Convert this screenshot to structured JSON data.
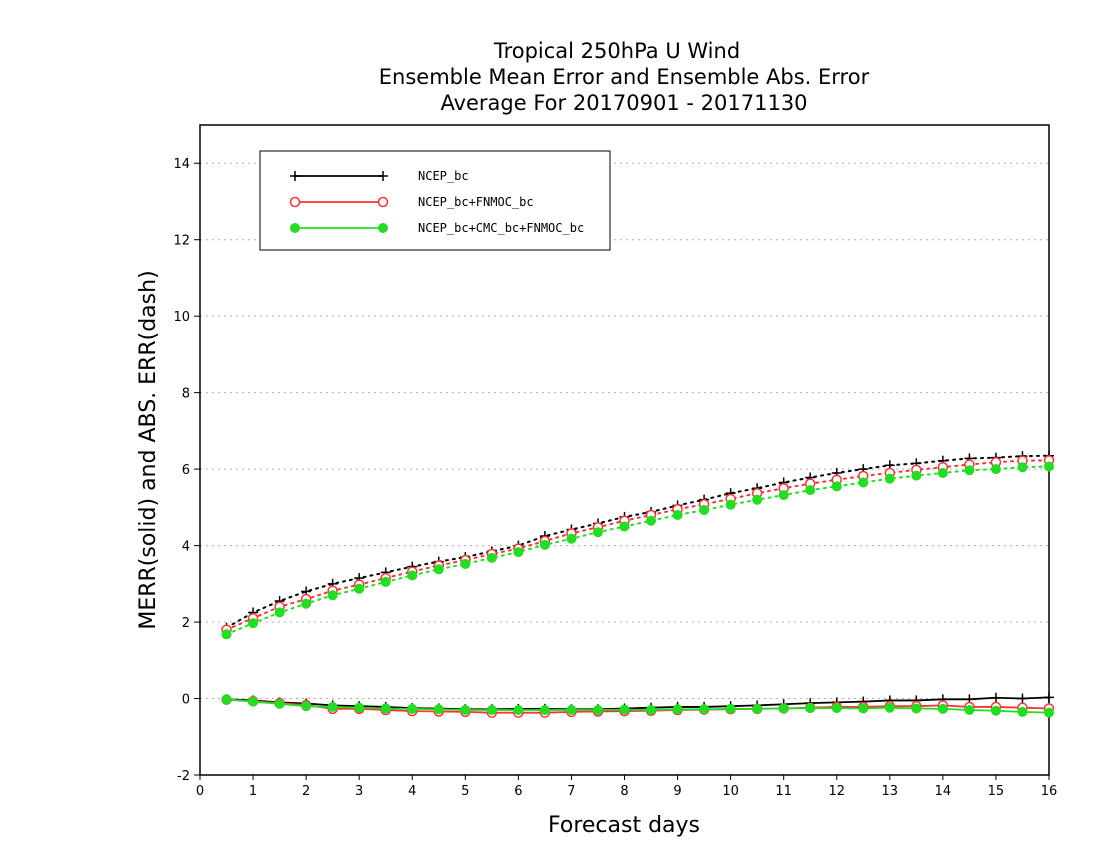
{
  "chart_data": {
    "type": "line",
    "title": [
      "Tropical 250hPa U Wind",
      "Ensemble Mean Error and Ensemble Abs. Error",
      "Average For 20170901 - 20171130"
    ],
    "xlabel": "Forecast days",
    "ylabel": "MERR(solid) and ABS. ERR(dash)",
    "xlim": [
      0,
      16
    ],
    "ylim": [
      -2,
      15
    ],
    "xticks": [
      "0",
      "1",
      "2",
      "3",
      "4",
      "5",
      "6",
      "7",
      "8",
      "9",
      "10",
      "11",
      "12",
      "13",
      "14",
      "15",
      "16"
    ],
    "yticks": [
      "-2",
      "0",
      "2",
      "4",
      "6",
      "8",
      "10",
      "12",
      "14"
    ],
    "grid": "horizontal dotted",
    "legend_position": "top-left",
    "x": [
      0.5,
      1,
      1.5,
      2,
      2.5,
      3,
      3.5,
      4,
      4.5,
      5,
      5.5,
      6,
      6.5,
      7,
      7.5,
      8,
      8.5,
      9,
      9.5,
      10,
      10.5,
      11,
      11.5,
      12,
      12.5,
      13,
      13.5,
      14,
      14.5,
      15,
      15.5,
      16
    ],
    "series": [
      {
        "name": "NCEP_bc",
        "color": "#000000",
        "marker": "plus",
        "abs_err": [
          1.85,
          2.25,
          2.55,
          2.8,
          3.0,
          3.15,
          3.3,
          3.45,
          3.58,
          3.7,
          3.85,
          4.0,
          4.25,
          4.42,
          4.58,
          4.75,
          4.88,
          5.05,
          5.2,
          5.37,
          5.5,
          5.65,
          5.78,
          5.9,
          6.0,
          6.1,
          6.15,
          6.22,
          6.28,
          6.3,
          6.34,
          6.35
        ],
        "mean_err": [
          -0.02,
          -0.05,
          -0.1,
          -0.13,
          -0.18,
          -0.2,
          -0.22,
          -0.25,
          -0.26,
          -0.28,
          -0.28,
          -0.27,
          -0.27,
          -0.28,
          -0.28,
          -0.26,
          -0.24,
          -0.22,
          -0.22,
          -0.2,
          -0.18,
          -0.15,
          -0.12,
          -0.1,
          -0.08,
          -0.05,
          -0.05,
          -0.02,
          -0.02,
          0.02,
          0.0,
          0.03
        ]
      },
      {
        "name": "NCEP_bc+FNMOC_bc",
        "color": "#ff3333",
        "marker": "open-circle",
        "abs_err": [
          1.8,
          2.1,
          2.4,
          2.6,
          2.82,
          2.98,
          3.15,
          3.32,
          3.48,
          3.62,
          3.78,
          3.92,
          4.12,
          4.32,
          4.48,
          4.65,
          4.8,
          4.95,
          5.08,
          5.22,
          5.37,
          5.5,
          5.62,
          5.72,
          5.82,
          5.9,
          5.98,
          6.05,
          6.12,
          6.18,
          6.22,
          6.23
        ],
        "mean_err": [
          -0.03,
          -0.07,
          -0.12,
          -0.17,
          -0.27,
          -0.27,
          -0.3,
          -0.33,
          -0.34,
          -0.35,
          -0.37,
          -0.37,
          -0.37,
          -0.35,
          -0.34,
          -0.33,
          -0.32,
          -0.3,
          -0.29,
          -0.28,
          -0.27,
          -0.26,
          -0.24,
          -0.22,
          -0.22,
          -0.2,
          -0.2,
          -0.18,
          -0.22,
          -0.22,
          -0.24,
          -0.26
        ]
      },
      {
        "name": "NCEP_bc+CMC_bc+FNMOC_bc",
        "color": "#22dd22",
        "marker": "filled-circle",
        "abs_err": [
          1.68,
          1.97,
          2.25,
          2.48,
          2.7,
          2.87,
          3.05,
          3.22,
          3.38,
          3.52,
          3.68,
          3.83,
          4.02,
          4.18,
          4.35,
          4.5,
          4.65,
          4.8,
          4.93,
          5.07,
          5.2,
          5.32,
          5.45,
          5.55,
          5.65,
          5.75,
          5.83,
          5.9,
          5.97,
          6.0,
          6.05,
          6.07
        ],
        "mean_err": [
          -0.02,
          -0.08,
          -0.14,
          -0.2,
          -0.22,
          -0.24,
          -0.26,
          -0.27,
          -0.28,
          -0.3,
          -0.3,
          -0.3,
          -0.3,
          -0.3,
          -0.3,
          -0.29,
          -0.3,
          -0.28,
          -0.28,
          -0.27,
          -0.27,
          -0.26,
          -0.25,
          -0.25,
          -0.26,
          -0.24,
          -0.26,
          -0.27,
          -0.3,
          -0.32,
          -0.35,
          -0.37
        ]
      }
    ]
  }
}
